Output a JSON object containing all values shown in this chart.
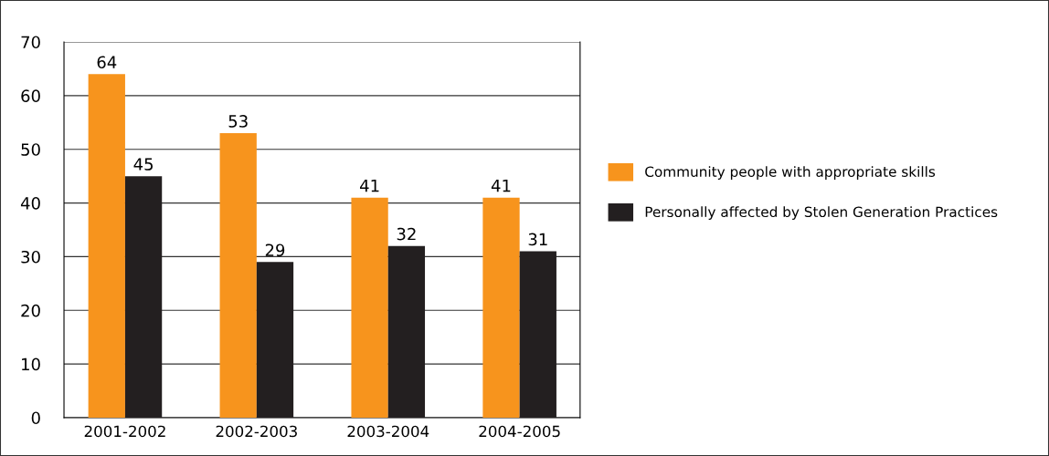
{
  "chart_data": {
    "type": "bar",
    "categories": [
      "2001-2002",
      "2002-2003",
      "2003-2004",
      "2004-2005"
    ],
    "series": [
      {
        "name": "Community people with appropriate skills",
        "color": "#f7941d",
        "values": [
          64,
          53,
          41,
          41
        ]
      },
      {
        "name": "Personally affected by Stolen Generation Practices",
        "color": "#231f20",
        "values": [
          45,
          29,
          32,
          31
        ]
      }
    ],
    "ylim": [
      0,
      70
    ],
    "yticks": [
      0,
      10,
      20,
      30,
      40,
      50,
      60,
      70
    ],
    "grid": "y",
    "legend": "right",
    "data_labels": true
  }
}
